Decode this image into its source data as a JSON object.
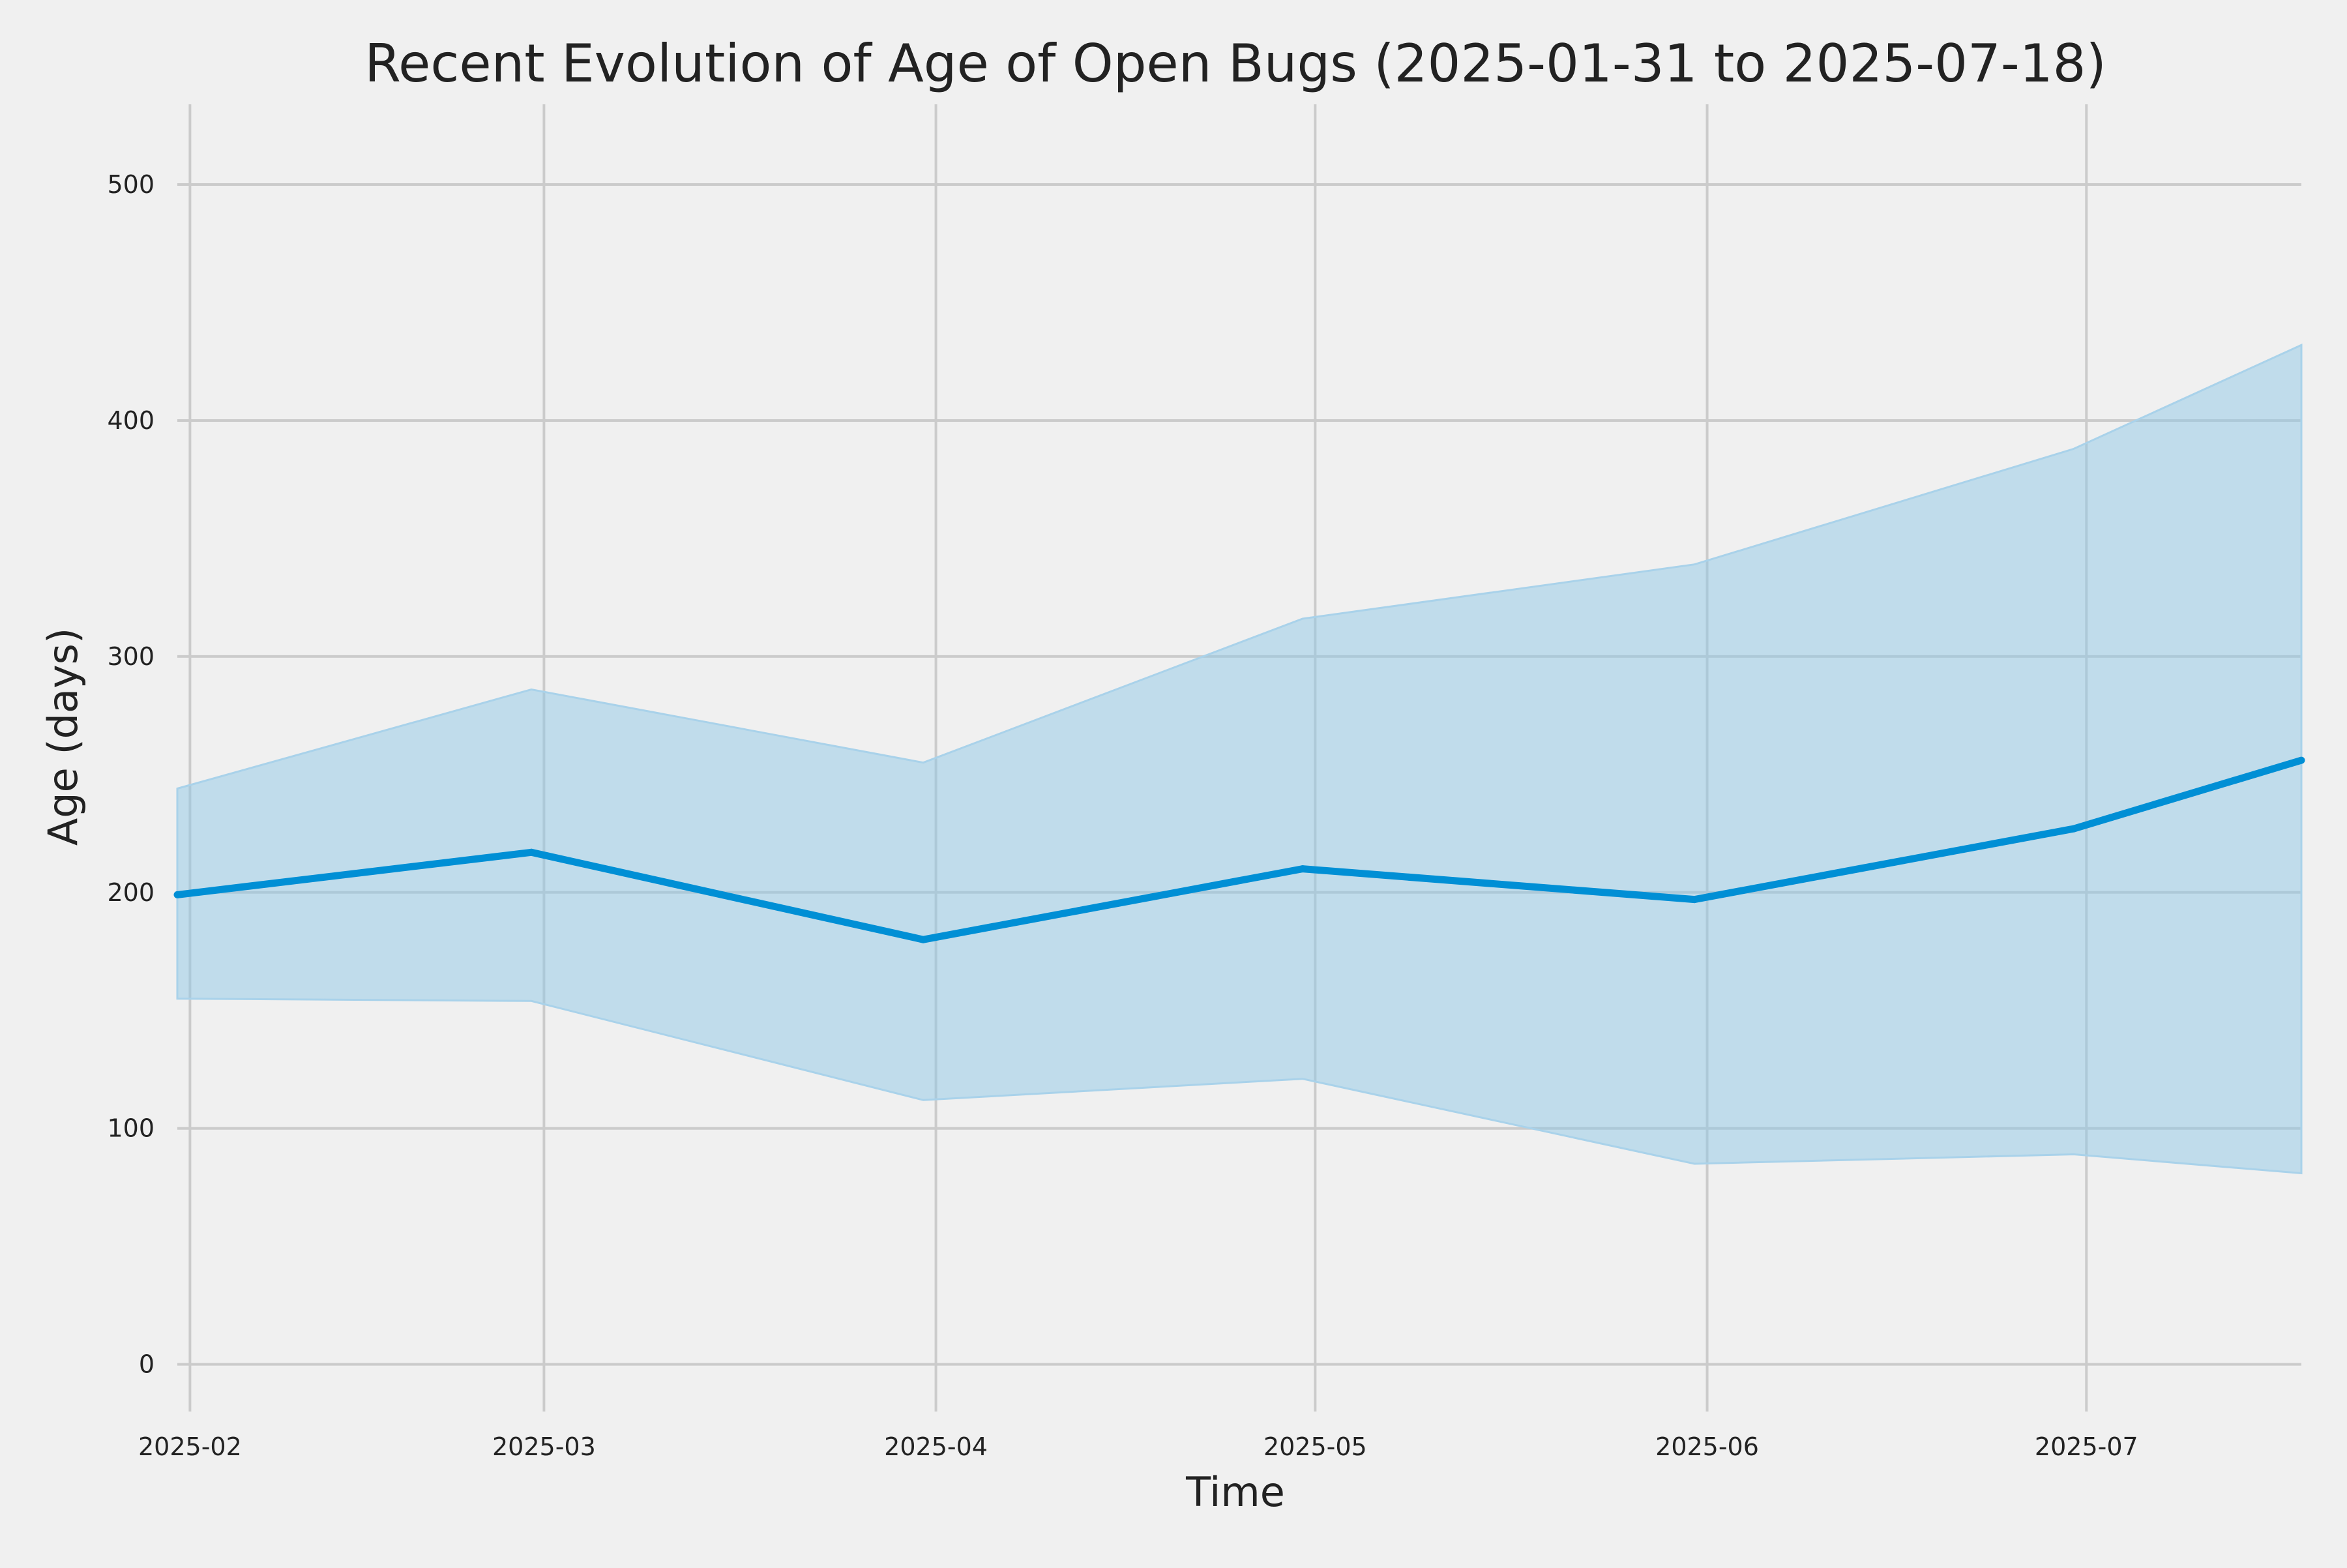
{
  "chart_data": {
    "type": "line",
    "title": "Recent Evolution of Age of Open Bugs (2025-01-31 to 2025-07-18)",
    "xlabel": "Time",
    "ylabel": "Age (days)",
    "x": [
      "2025-01-31",
      "2025-02-28",
      "2025-03-31",
      "2025-04-30",
      "2025-05-31",
      "2025-06-30",
      "2025-07-18"
    ],
    "series": [
      {
        "values": [
          199,
          217,
          180,
          210,
          197,
          227,
          256
        ],
        "upper": [
          244,
          286,
          255,
          316,
          339,
          388,
          432
        ],
        "lower": [
          155,
          154,
          112,
          121,
          85,
          89,
          81
        ]
      }
    ],
    "xlim": [
      "2025-01-31",
      "2025-07-18"
    ],
    "ylim": [
      -20,
      534
    ],
    "yticks": [
      0,
      100,
      200,
      300,
      400,
      500
    ],
    "xticks": [
      {
        "date": "2025-02-01",
        "label": "2025-02"
      },
      {
        "date": "2025-03-01",
        "label": "2025-03"
      },
      {
        "date": "2025-04-01",
        "label": "2025-04"
      },
      {
        "date": "2025-05-01",
        "label": "2025-05"
      },
      {
        "date": "2025-06-01",
        "label": "2025-06"
      },
      {
        "date": "2025-07-01",
        "label": "2025-07"
      }
    ],
    "grid": true,
    "colors": {
      "background": "#f0f0f0",
      "grid": "#cbcbcb",
      "line": "#008fd5",
      "band": "#8fc8e6",
      "band_edge": "#a9d2ea",
      "text": "#222222"
    }
  }
}
